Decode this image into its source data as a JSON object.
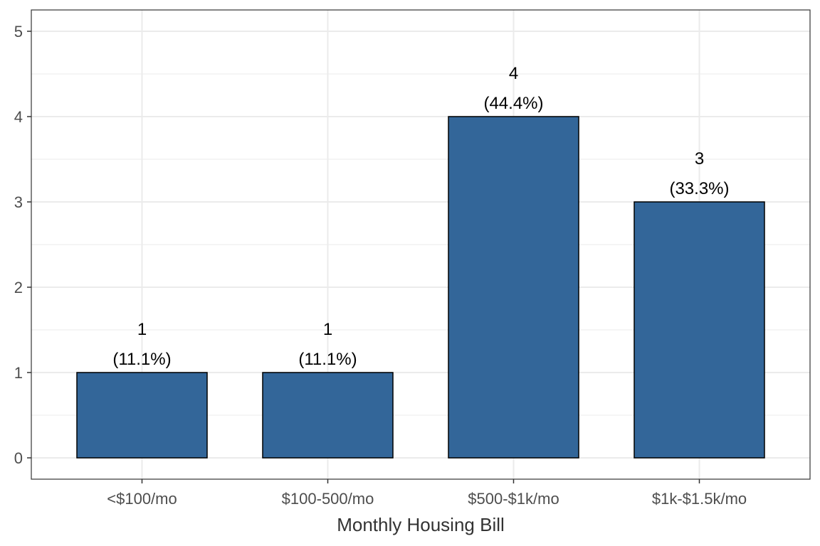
{
  "chart_data": {
    "type": "bar",
    "categories": [
      "<$100/mo",
      "$100-500/mo",
      "$500-$1k/mo",
      "$1k-$1.5k/mo"
    ],
    "values": [
      1,
      1,
      4,
      3
    ],
    "value_labels": [
      "1",
      "1",
      "4",
      "3"
    ],
    "percent_labels": [
      "(11.1%)",
      "(11.1%)",
      "(44.4%)",
      "(33.3%)"
    ],
    "title": "",
    "xlabel": "Monthly Housing Bill",
    "ylabel": "",
    "ylim": [
      0,
      5
    ],
    "yticks": [
      "0",
      "1",
      "2",
      "3",
      "4",
      "5"
    ],
    "grid": true,
    "legend": "none",
    "colors": {
      "bar": "#336699",
      "bar_outline": "#000000",
      "grid": "#ebebeb",
      "panel_border": "#333333"
    }
  }
}
